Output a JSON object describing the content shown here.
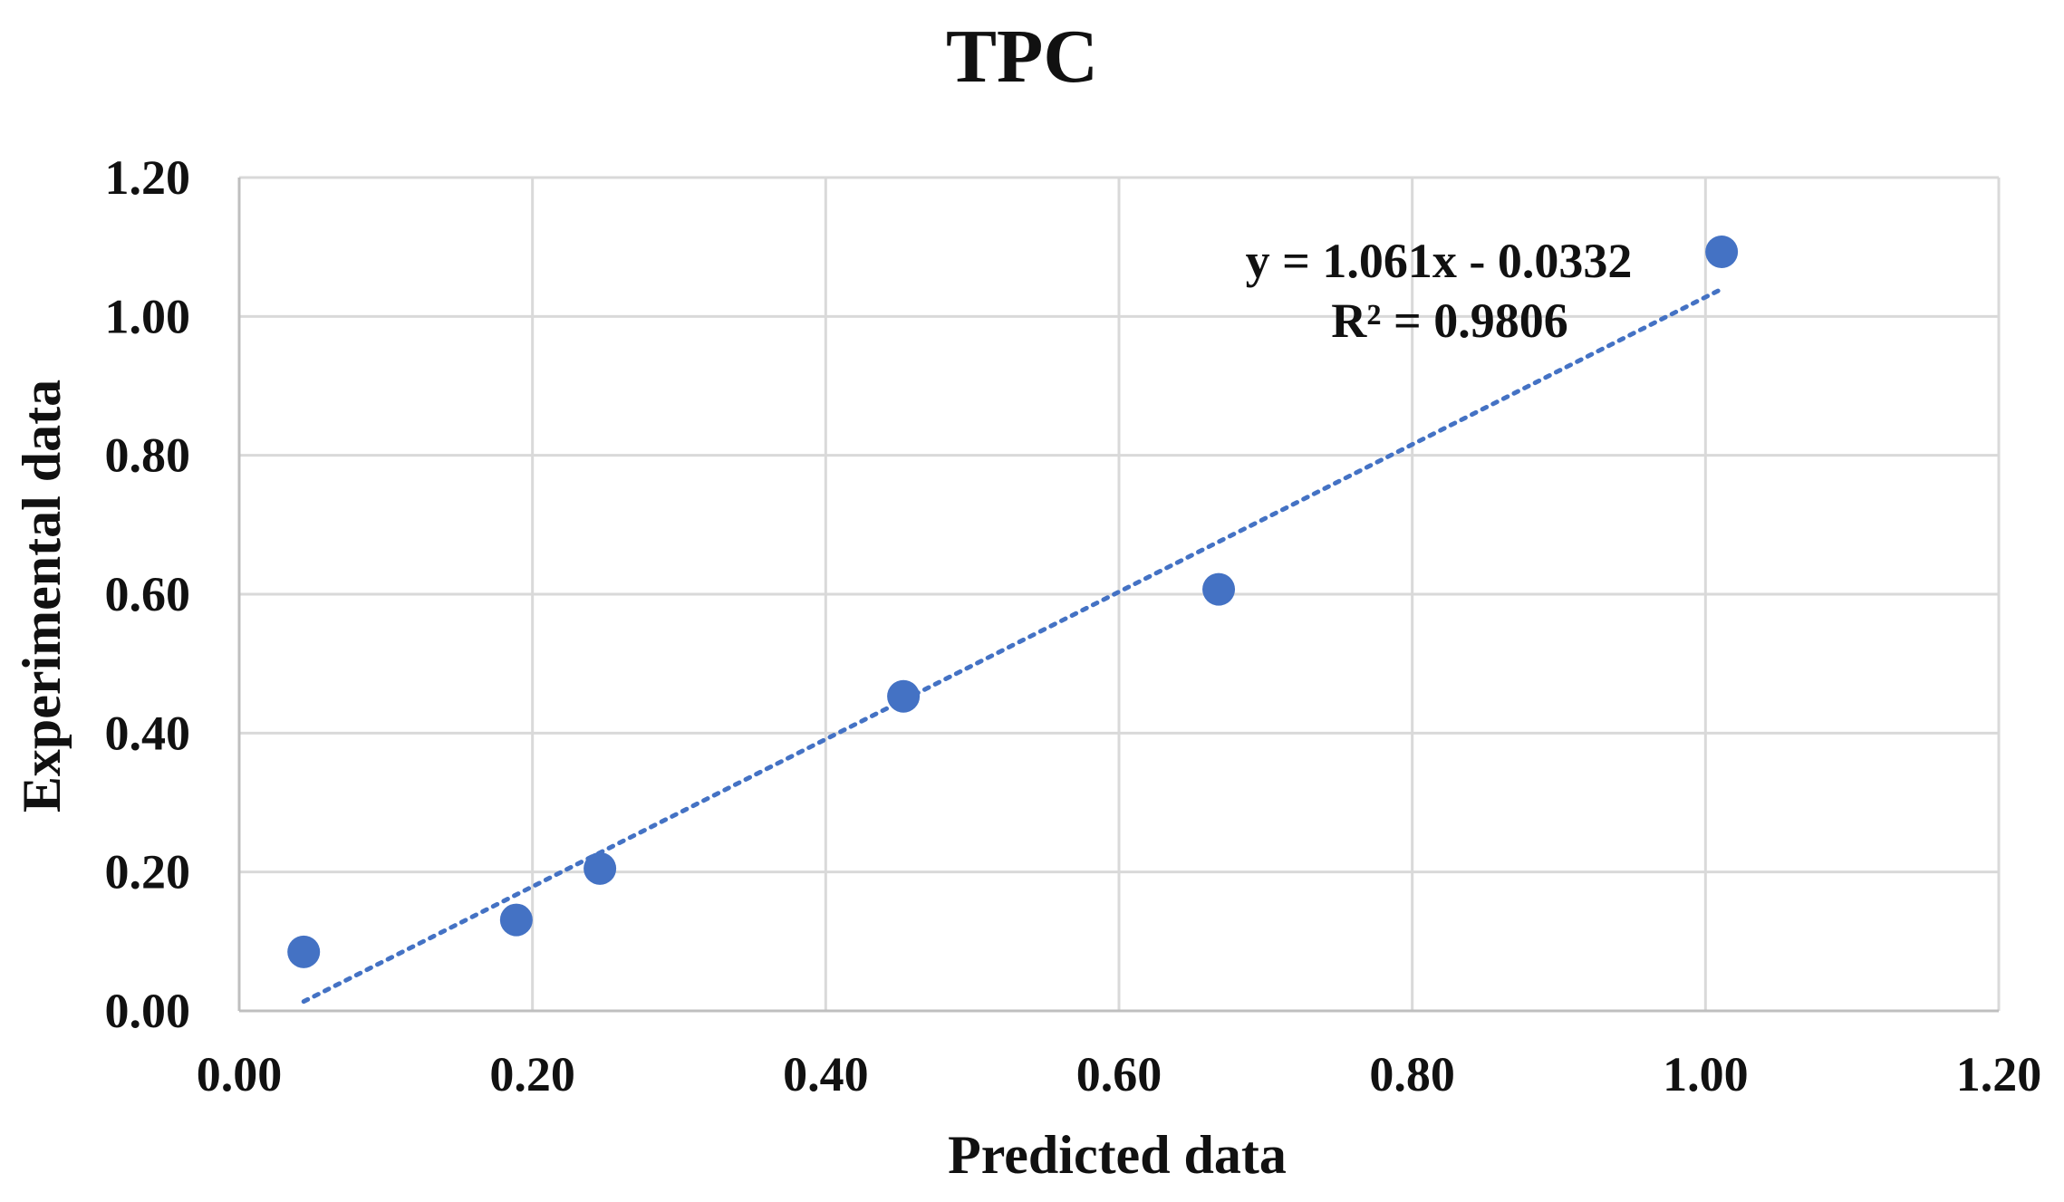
{
  "chart_data": {
    "type": "scatter",
    "title": "TPC",
    "xlabel": "Predicted data",
    "ylabel": "Experimental data",
    "xlim": [
      0,
      1.2
    ],
    "ylim": [
      0,
      1.2
    ],
    "xticks": [
      "0.00",
      "0.20",
      "0.40",
      "0.60",
      "0.80",
      "1.00",
      "1.20"
    ],
    "yticks": [
      "0.00",
      "0.20",
      "0.40",
      "0.60",
      "0.80",
      "1.00",
      "1.20"
    ],
    "grid": true,
    "series": [
      {
        "x": [
          0.044,
          0.189,
          0.246,
          0.453,
          0.668,
          1.011
        ],
        "y": [
          0.085,
          0.131,
          0.205,
          0.453,
          0.607,
          1.093
        ],
        "color": "#4472C4"
      }
    ],
    "trendline": {
      "slope": 1.061,
      "intercept": -0.0332,
      "x_range": [
        0.044,
        1.011
      ],
      "style": "dotted",
      "color": "#4472C4",
      "equation_label": "y = 1.061x - 0.0332",
      "r2_label": "R² = 0.9806"
    }
  }
}
